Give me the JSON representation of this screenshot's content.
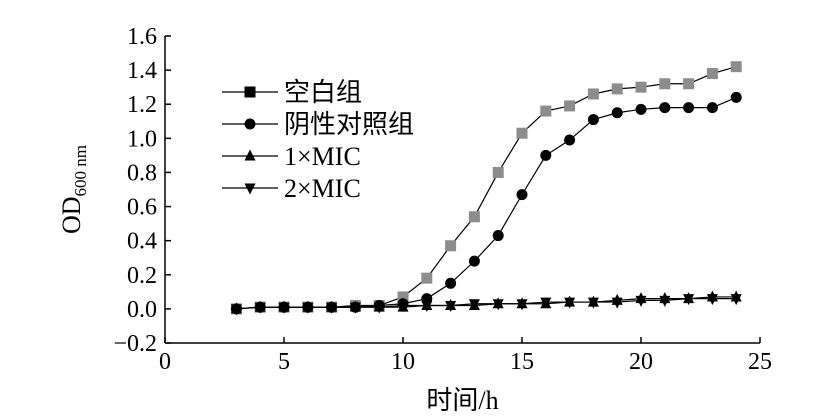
{
  "chart_data": {
    "type": "line",
    "xlabel": "时间/h",
    "ylabel_main": "OD",
    "ylabel_sub": "600 nm",
    "xlim": [
      0,
      25
    ],
    "ylim": [
      -0.2,
      1.6
    ],
    "x_ticks": [
      0,
      5,
      10,
      15,
      20,
      25
    ],
    "x_tick_labels": [
      "0",
      "5",
      "10",
      "15",
      "20",
      "25"
    ],
    "y_ticks": [
      -0.2,
      0.0,
      0.2,
      0.4,
      0.6,
      0.8,
      1.0,
      1.2,
      1.4,
      1.6
    ],
    "y_tick_labels": [
      "−0.2",
      "0.0",
      "0.2",
      "0.4",
      "0.6",
      "0.8",
      "1.0",
      "1.2",
      "1.4",
      "1.6"
    ],
    "grid": false,
    "legend_position": "upper-left",
    "x": [
      3,
      4,
      5,
      6,
      7,
      8,
      9,
      10,
      11,
      12,
      13,
      14,
      15,
      16,
      17,
      18,
      19,
      20,
      21,
      22,
      23,
      24
    ],
    "series": [
      {
        "name": "空白组",
        "marker": "square",
        "color": "#8c8c8c",
        "values": [
          0.0,
          0.01,
          0.01,
          0.01,
          0.01,
          0.02,
          0.02,
          0.07,
          0.18,
          0.37,
          0.54,
          0.8,
          1.03,
          1.16,
          1.19,
          1.26,
          1.29,
          1.3,
          1.32,
          1.32,
          1.38,
          1.42
        ]
      },
      {
        "name": "阴性对照组",
        "marker": "circle",
        "color": "#000000",
        "values": [
          0.0,
          0.01,
          0.01,
          0.01,
          0.01,
          0.01,
          0.02,
          0.03,
          0.06,
          0.15,
          0.28,
          0.43,
          0.67,
          0.9,
          0.99,
          1.11,
          1.15,
          1.17,
          1.18,
          1.18,
          1.18,
          1.24
        ]
      },
      {
        "name": "1×MIC",
        "marker": "triangle-up",
        "color": "#000000",
        "values": [
          0.0,
          0.01,
          0.01,
          0.01,
          0.01,
          0.01,
          0.01,
          0.01,
          0.02,
          0.02,
          0.02,
          0.03,
          0.03,
          0.03,
          0.04,
          0.04,
          0.05,
          0.06,
          0.06,
          0.06,
          0.07,
          0.07
        ]
      },
      {
        "name": "2×MIC",
        "marker": "triangle-down",
        "color": "#000000",
        "values": [
          0.0,
          0.01,
          0.01,
          0.01,
          0.01,
          0.01,
          0.01,
          0.02,
          0.02,
          0.02,
          0.03,
          0.03,
          0.03,
          0.04,
          0.04,
          0.04,
          0.04,
          0.05,
          0.05,
          0.06,
          0.06,
          0.06
        ]
      }
    ]
  }
}
